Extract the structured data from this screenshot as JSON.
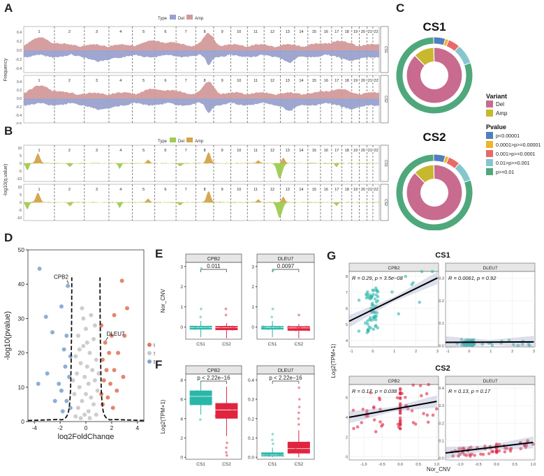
{
  "panels": {
    "a": "A",
    "b": "B",
    "c": "C",
    "d": "D",
    "e": "E",
    "f": "F",
    "g": "G"
  },
  "colors": {
    "amp_a": "#d49a9a",
    "del_a": "#9aa1cc",
    "amp_b": "#d4a34a",
    "del_b": "#9ecb52",
    "up": "#e07a5f",
    "stable": "#c8c8c8",
    "down": "#7fa6cf",
    "cs1": "#2ab7a9",
    "cs2": "#e0243f",
    "pie_del": "#c86b8f",
    "pie_amp": "#c8b82e",
    "p1": "#4f7fbf",
    "p2": "#f0b429",
    "p3": "#e9696a",
    "p4": "#85c6cf",
    "p5": "#4fa87c"
  },
  "chart_data": [
    {
      "id": "A",
      "type": "area",
      "legend_title": "Type",
      "legend": [
        "Del",
        "Amp"
      ],
      "ylabel": "Frequency",
      "chromosomes": [
        "1",
        "2",
        "3",
        "4",
        "5",
        "6",
        "7",
        "8",
        "9",
        "10",
        "11",
        "12",
        "13",
        "14",
        "15",
        "16",
        "17",
        "18",
        "19",
        "20",
        "21",
        "22"
      ],
      "facets": [
        "CS1",
        "CS2"
      ],
      "yticks_top": [
        "0.4",
        "0.2",
        "0.0",
        "-0.2",
        "-0.4"
      ],
      "yticks_bottom": [
        "0.4",
        "0.2",
        "0.0",
        "-0.2",
        "-0.4",
        "-0.6"
      ]
    },
    {
      "id": "B",
      "type": "area",
      "legend_title": "Type",
      "legend": [
        "Del",
        "Amp"
      ],
      "ylabel": "-log10(q.value)",
      "chromosomes": [
        "1",
        "2",
        "3",
        "4",
        "5",
        "6",
        "7",
        "8",
        "9",
        "10",
        "11",
        "12",
        "13",
        "14",
        "15",
        "16",
        "17",
        "18",
        "19",
        "20",
        "21",
        "22"
      ],
      "facets": [
        "CS1",
        "CS2"
      ],
      "yticks": [
        "10",
        "5",
        "0",
        "-5",
        "-10"
      ]
    },
    {
      "id": "C",
      "type": "pie",
      "titles": [
        "CS1",
        "CS2"
      ],
      "variant_title": "Variant",
      "variant_items": [
        "Del",
        "Amp"
      ],
      "pvalue_title": "Pvalue",
      "pvalue_items": [
        "p<0.00001",
        "0.0001>p>=0.00001",
        "0.001>p>=0.0001",
        "0.01>p>=0.001",
        "p>=0.01"
      ],
      "inner": [
        {
          "label": "Del",
          "value": 88
        },
        {
          "label": "Amp",
          "value": 12
        }
      ],
      "outer": [
        5,
        1.5,
        5,
        8.5,
        80
      ]
    },
    {
      "id": "D",
      "type": "scatter",
      "xlabel": "log2FoldChange",
      "ylabel": "-log10(pvalue)",
      "xlim": [
        -4.5,
        4.5
      ],
      "ylim": [
        0,
        50
      ],
      "xticks": [
        "-4",
        "-2",
        "0",
        "2",
        "4"
      ],
      "yticks": [
        "0",
        "10",
        "20",
        "30",
        "40",
        "50"
      ],
      "legend": [
        "Up",
        "Stable",
        "Down"
      ],
      "annotations": [
        {
          "label": "CPB2",
          "x": -1.3,
          "y": 39.5
        },
        {
          "label": "DLEU7",
          "x": 1.5,
          "y": 23
        }
      ],
      "points": [
        {
          "x": -3.6,
          "y": 44.5,
          "g": "Down"
        },
        {
          "x": -1.4,
          "y": 39.5,
          "g": "Down"
        },
        {
          "x": -3.1,
          "y": 30.5,
          "g": "Down"
        },
        {
          "x": -1.9,
          "y": 33.5,
          "g": "Down"
        },
        {
          "x": -2.6,
          "y": 26,
          "g": "Down"
        },
        {
          "x": -1.5,
          "y": 25,
          "g": "Down"
        },
        {
          "x": -1.7,
          "y": 21,
          "g": "Down"
        },
        {
          "x": -1.2,
          "y": 19,
          "g": "Down"
        },
        {
          "x": -3.0,
          "y": 14,
          "g": "Down"
        },
        {
          "x": -1.6,
          "y": 16,
          "g": "Down"
        },
        {
          "x": -1.3,
          "y": 13,
          "g": "Down"
        },
        {
          "x": -2.1,
          "y": 11,
          "g": "Down"
        },
        {
          "x": -3.7,
          "y": 11,
          "g": "Down"
        },
        {
          "x": -1.9,
          "y": 9,
          "g": "Down"
        },
        {
          "x": -1.5,
          "y": 6,
          "g": "Down"
        },
        {
          "x": -2.4,
          "y": 6,
          "g": "Down"
        },
        {
          "x": -1.2,
          "y": 4,
          "g": "Down"
        },
        {
          "x": -1.8,
          "y": 3,
          "g": "Down"
        },
        {
          "x": 2.8,
          "y": 41,
          "g": "Up"
        },
        {
          "x": 2.2,
          "y": 31,
          "g": "Up"
        },
        {
          "x": 3.2,
          "y": 33,
          "g": "Up"
        },
        {
          "x": 1.5,
          "y": 23,
          "g": "Up"
        },
        {
          "x": 1.2,
          "y": 28,
          "g": "Up"
        },
        {
          "x": 2.0,
          "y": 25,
          "g": "Up"
        },
        {
          "x": 1.8,
          "y": 20,
          "g": "Up"
        },
        {
          "x": 2.5,
          "y": 20,
          "g": "Up"
        },
        {
          "x": 1.3,
          "y": 18,
          "g": "Up"
        },
        {
          "x": 1.6,
          "y": 15,
          "g": "Up"
        },
        {
          "x": 2.2,
          "y": 15,
          "g": "Up"
        },
        {
          "x": 2.9,
          "y": 13,
          "g": "Up"
        },
        {
          "x": 1.4,
          "y": 12,
          "g": "Up"
        },
        {
          "x": 1.9,
          "y": 11,
          "g": "Up"
        },
        {
          "x": 1.2,
          "y": 8,
          "g": "Up"
        },
        {
          "x": 1.7,
          "y": 7,
          "g": "Up"
        },
        {
          "x": 2.4,
          "y": 9,
          "g": "Up"
        },
        {
          "x": 1.3,
          "y": 5,
          "g": "Up"
        },
        {
          "x": 2.1,
          "y": 4,
          "g": "Up"
        },
        {
          "x": 3.0,
          "y": 25,
          "g": "Up"
        },
        {
          "x": -0.3,
          "y": 33,
          "g": "Stable"
        },
        {
          "x": 0.4,
          "y": 31,
          "g": "Stable"
        },
        {
          "x": 0.0,
          "y": 27,
          "g": "Stable"
        },
        {
          "x": -0.6,
          "y": 25,
          "g": "Stable"
        },
        {
          "x": 0.6,
          "y": 24,
          "g": "Stable"
        },
        {
          "x": -0.2,
          "y": 22,
          "g": "Stable"
        },
        {
          "x": 0.3,
          "y": 20,
          "g": "Stable"
        },
        {
          "x": -0.8,
          "y": 19,
          "g": "Stable"
        },
        {
          "x": 0.8,
          "y": 18,
          "g": "Stable"
        },
        {
          "x": -0.4,
          "y": 17,
          "g": "Stable"
        },
        {
          "x": 0.1,
          "y": 16,
          "g": "Stable"
        },
        {
          "x": 0.5,
          "y": 15,
          "g": "Stable"
        },
        {
          "x": -0.7,
          "y": 14,
          "g": "Stable"
        },
        {
          "x": -0.1,
          "y": 13,
          "g": "Stable"
        },
        {
          "x": 0.7,
          "y": 12,
          "g": "Stable"
        },
        {
          "x": 0.2,
          "y": 11,
          "g": "Stable"
        },
        {
          "x": -0.5,
          "y": 10,
          "g": "Stable"
        },
        {
          "x": 0.9,
          "y": 9,
          "g": "Stable"
        },
        {
          "x": -0.9,
          "y": 8,
          "g": "Stable"
        },
        {
          "x": 0.0,
          "y": 8,
          "g": "Stable"
        },
        {
          "x": 0.4,
          "y": 7,
          "g": "Stable"
        },
        {
          "x": -0.3,
          "y": 6,
          "g": "Stable"
        },
        {
          "x": 0.6,
          "y": 5,
          "g": "Stable"
        },
        {
          "x": -0.6,
          "y": 4,
          "g": "Stable"
        },
        {
          "x": 0.2,
          "y": 3,
          "g": "Stable"
        },
        {
          "x": -0.1,
          "y": 2,
          "g": "Stable"
        },
        {
          "x": 0.8,
          "y": 2,
          "g": "Stable"
        },
        {
          "x": -0.8,
          "y": 1.5,
          "g": "Stable"
        },
        {
          "x": 0.3,
          "y": 1,
          "g": "Stable"
        },
        {
          "x": -0.4,
          "y": 1,
          "g": "Stable"
        },
        {
          "x": 1.0,
          "y": 14,
          "g": "Stable"
        },
        {
          "x": -1.0,
          "y": 12,
          "g": "Stable"
        },
        {
          "x": 0.1,
          "y": 23,
          "g": "Stable"
        },
        {
          "x": -0.5,
          "y": 21,
          "g": "Stable"
        },
        {
          "x": 0.7,
          "y": 28,
          "g": "Stable"
        },
        {
          "x": -0.2,
          "y": 30,
          "g": "Stable"
        }
      ]
    },
    {
      "id": "E",
      "type": "box",
      "ylabel": "Nor_CNV",
      "facets": [
        {
          "title": "CPB2",
          "pvalue": "0.011",
          "ylim": [
            -0.6,
            3.2
          ],
          "yticks": [
            "0",
            "1",
            "2",
            "3"
          ],
          "groups": [
            {
              "name": "CS1",
              "q1": -0.12,
              "median": -0.02,
              "q3": 0.06,
              "lo": -0.5,
              "hi": 0.3,
              "outliers": [
                0.9,
                2.9,
                0.5
              ]
            },
            {
              "name": "CS2",
              "q1": -0.15,
              "median": -0.03,
              "q3": 0.05,
              "lo": -0.55,
              "hi": 0.2,
              "outliers": [
                0.9,
                0.6
              ]
            }
          ]
        },
        {
          "title": "DLEU7",
          "pvalue": "0.0097",
          "ylim": [
            -0.6,
            3.2
          ],
          "yticks": [
            "0",
            "1",
            "2",
            "3"
          ],
          "groups": [
            {
              "name": "CS1",
              "q1": -0.12,
              "median": -0.02,
              "q3": 0.05,
              "lo": -0.5,
              "hi": 0.3,
              "outliers": [
                0.9,
                2.8,
                0.5
              ]
            },
            {
              "name": "CS2",
              "q1": -0.18,
              "median": -0.04,
              "q3": 0.04,
              "lo": -0.55,
              "hi": 0.15,
              "outliers": [
                0.6
              ]
            }
          ]
        }
      ],
      "xticks": [
        "CS1",
        "CS2"
      ]
    },
    {
      "id": "F",
      "type": "box",
      "ylabel": "Log2(TPM+1)",
      "facets": [
        {
          "title": "CPB2",
          "pvalue": "p < 2.22e−16",
          "ylim": [
            -0.2,
            8.6
          ],
          "yticks": [
            "0",
            "2",
            "4",
            "6",
            "8"
          ],
          "groups": [
            {
              "name": "CS1",
              "q1": 5.4,
              "median": 6.3,
              "q3": 6.9,
              "lo": 4.4,
              "hi": 7.8,
              "outliers": [
                3.9
              ]
            },
            {
              "name": "CS2",
              "q1": 4.0,
              "median": 4.9,
              "q3": 5.6,
              "lo": 2.2,
              "hi": 7.3,
              "outliers": [
                1.5,
                1.0,
                0.5,
                0.2
              ]
            }
          ]
        },
        {
          "title": "DLEU7",
          "pvalue": "p < 2.22e−16",
          "ylim": [
            -0.01,
            0.43
          ],
          "yticks": [
            "0.0",
            "0.1",
            "0.2",
            "0.3",
            "0.4"
          ],
          "groups": [
            {
              "name": "CS1",
              "q1": 0.005,
              "median": 0.012,
              "q3": 0.025,
              "lo": 0.0,
              "hi": 0.05,
              "outliers": [
                0.07,
                0.09,
                0.12
              ]
            },
            {
              "name": "CS2",
              "q1": 0.02,
              "median": 0.045,
              "q3": 0.08,
              "lo": 0.0,
              "hi": 0.14,
              "outliers": [
                0.17,
                0.2,
                0.23,
                0.26,
                0.3,
                0.36
              ]
            }
          ]
        }
      ],
      "xticks": [
        "CS1",
        "CS2"
      ]
    },
    {
      "id": "G",
      "type": "scatter",
      "xlabel": "Nor_CNV",
      "ylabel": "Log2(TPM+1)",
      "groups": [
        {
          "title": "CS1",
          "color_key": "cs1",
          "facets": [
            {
              "title": "CPB2",
              "stat": "R = 0.29, p = 3.5e−08",
              "xlim": [
                -1.1,
                3.05
              ],
              "ylim": [
                3.6,
                8.3
              ],
              "xticks": [
                "-1",
                "0",
                "1",
                "2",
                "3"
              ],
              "yticks": [
                "4",
                "5",
                "6",
                "7",
                "8"
              ],
              "line": [
                [
                  -1.1,
                  5.2
                ],
                [
                  3.0,
                  7.9
                ]
              ]
            },
            {
              "title": "DLEU7",
              "stat": "R = 0.0061, p = 0.92",
              "xlim": [
                -1.1,
                3.05
              ],
              "ylim": [
                -0.005,
                0.33
              ],
              "xticks": [
                "-1",
                "0",
                "1",
                "2",
                "3"
              ],
              "yticks": [
                "0.0",
                "0.1",
                "0.2",
                "0.3"
              ],
              "line": [
                [
                  -1.1,
                  0.015
                ],
                [
                  3.0,
                  0.017
                ]
              ]
            }
          ]
        },
        {
          "title": "CS2",
          "color_key": "cs2",
          "facets": [
            {
              "title": "CPB2",
              "stat": "R = 0.17, p = 0.038",
              "xlim": [
                -1.4,
                1.05
              ],
              "ylim": [
                -0.3,
                7.3
              ],
              "xticks": [
                "-1.0",
                "-0.5",
                "0.0",
                "0.5",
                "1.0"
              ],
              "yticks": [
                "0",
                "2",
                "4",
                "6"
              ],
              "line": [
                [
                  -1.4,
                  4.0
                ],
                [
                  1.0,
                  5.6
                ]
              ]
            },
            {
              "title": "DLEU7",
              "stat": "R = 0.13, p = 0.17",
              "xlim": [
                -1.4,
                1.05
              ],
              "ylim": [
                -0.01,
                0.42
              ],
              "xticks": [
                "-1.0",
                "-0.5",
                "0.0",
                "0.5",
                "1.0"
              ],
              "yticks": [
                "0.0",
                "0.1",
                "0.2",
                "0.3",
                "0.4"
              ],
              "line": [
                [
                  -1.4,
                  0.03
                ],
                [
                  1.0,
                  0.09
                ]
              ]
            }
          ]
        }
      ]
    }
  ]
}
